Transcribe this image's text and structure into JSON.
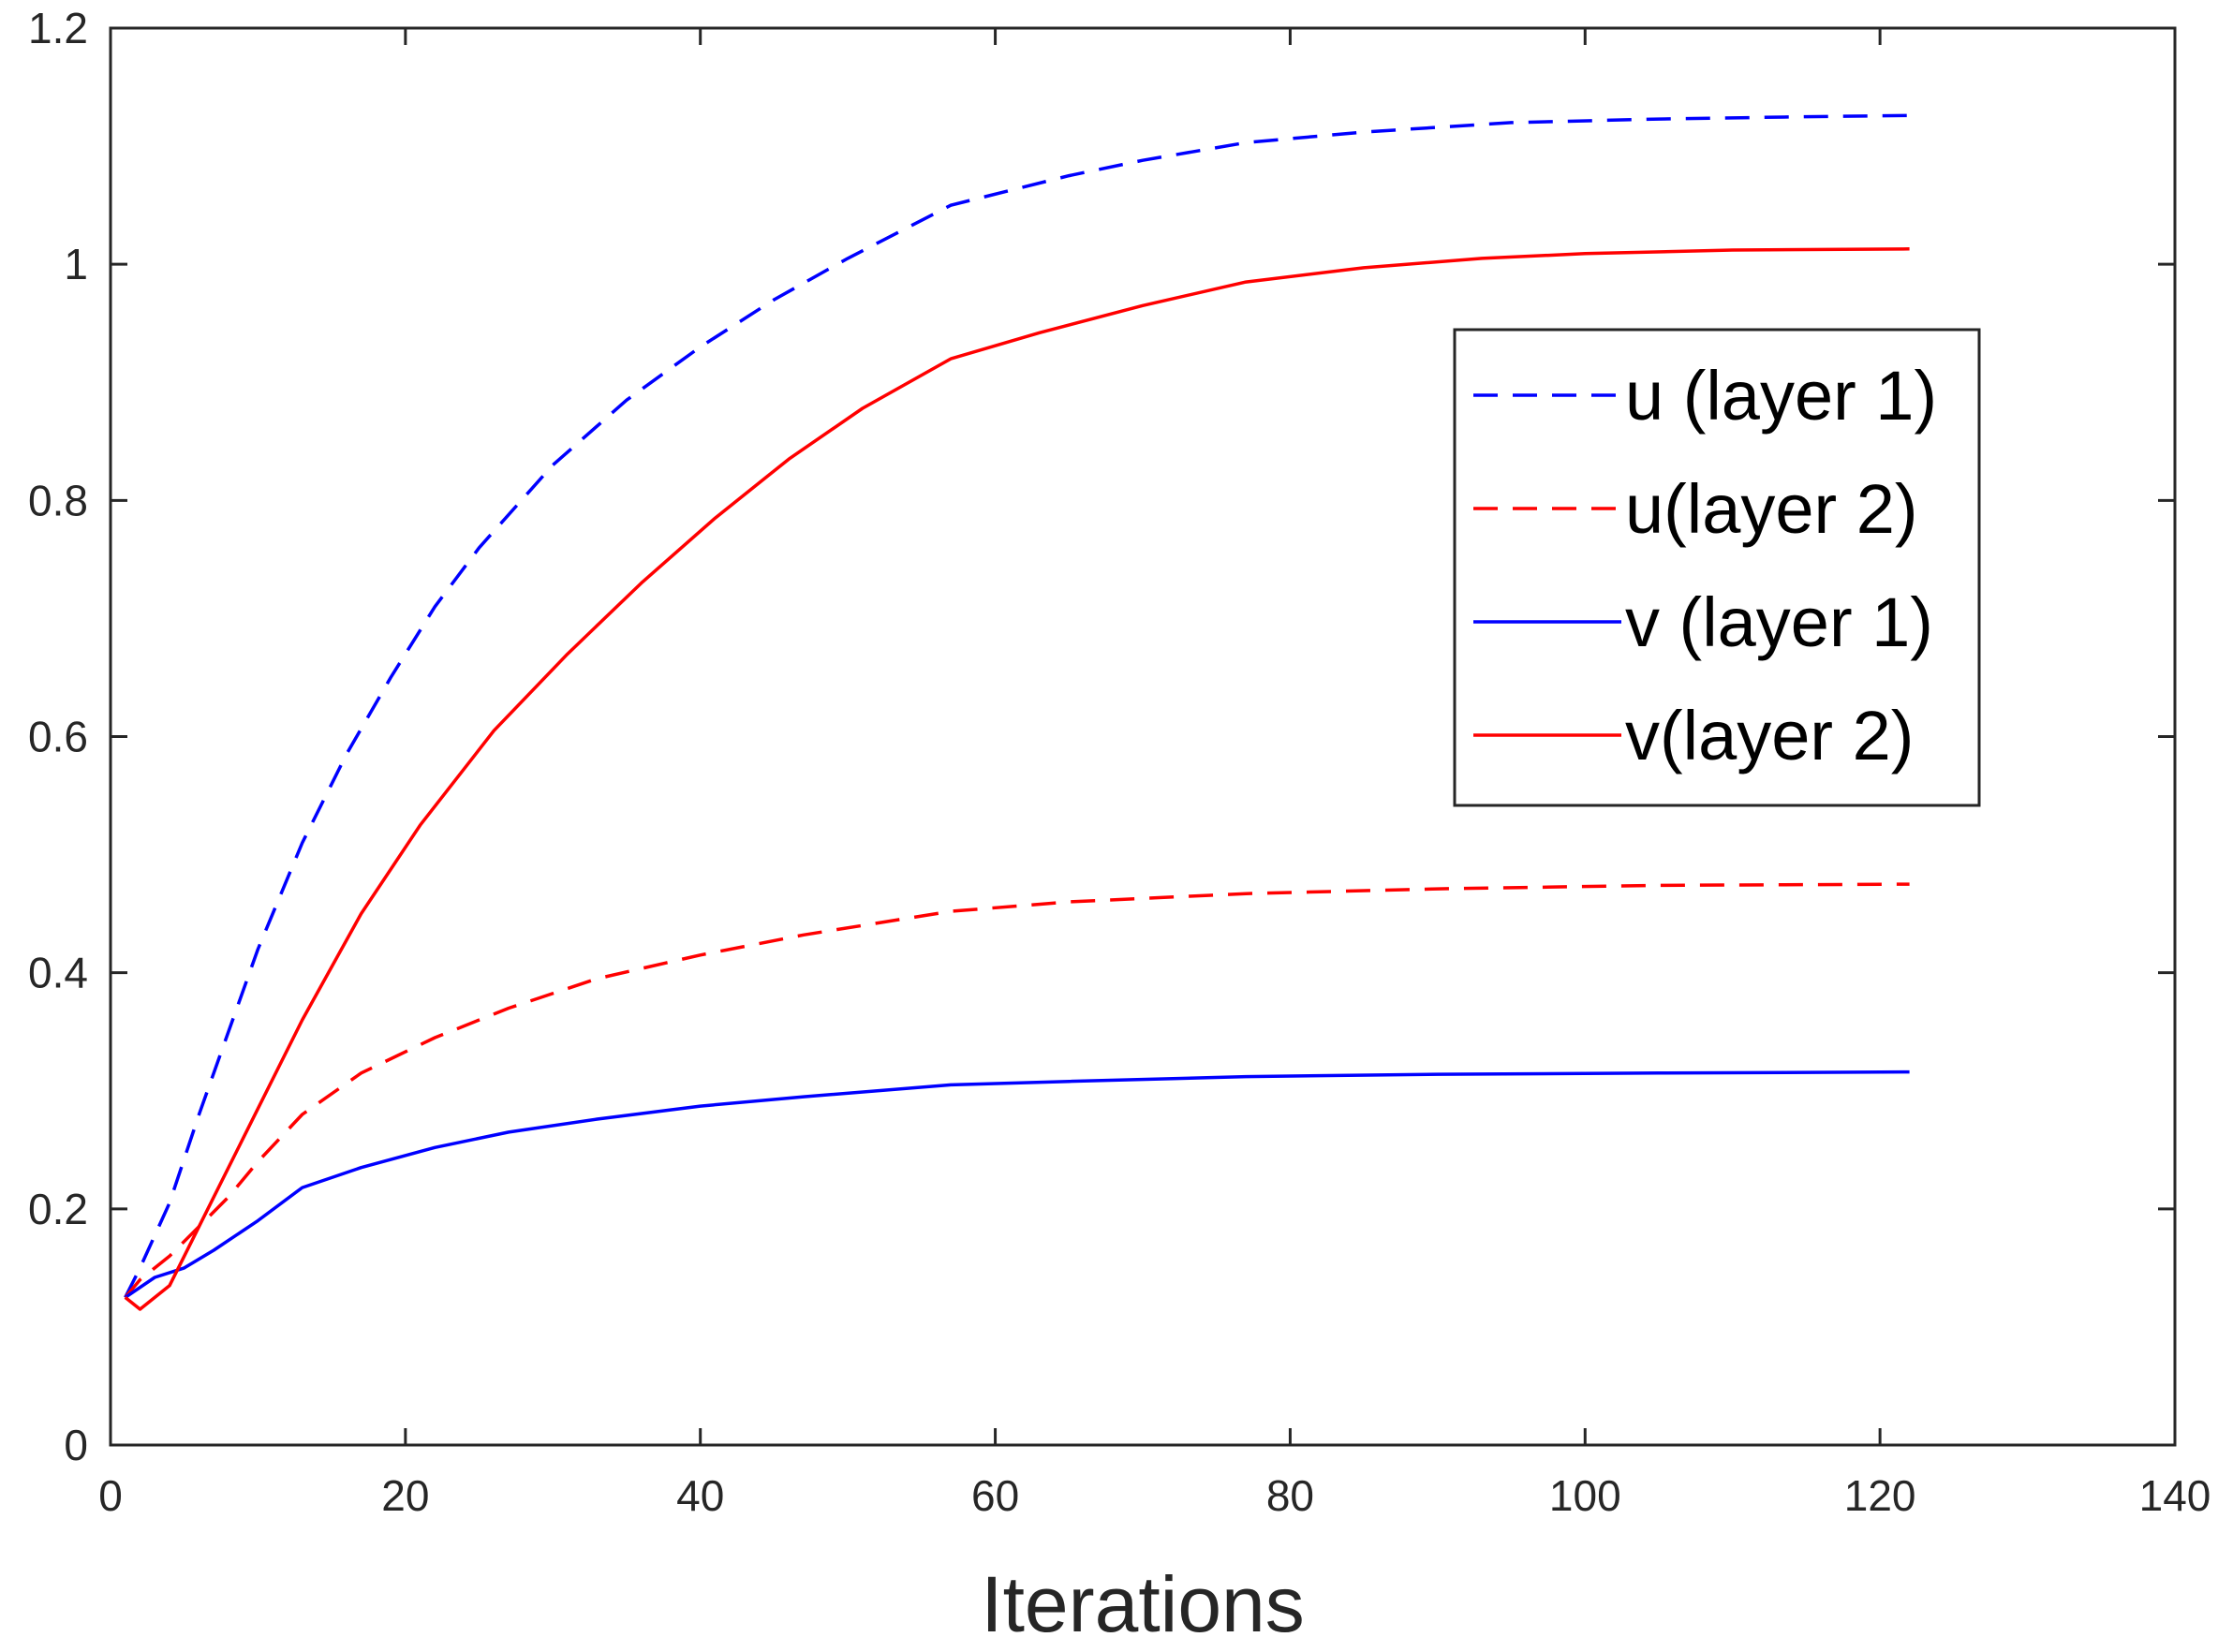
{
  "chart_data": {
    "type": "line",
    "title": "",
    "xlabel": "Iterations",
    "ylabel": "",
    "xlim": [
      0,
      140
    ],
    "ylim": [
      0,
      1.2
    ],
    "xticks": [
      0,
      20,
      40,
      60,
      80,
      100,
      120,
      140
    ],
    "yticks": [
      0,
      0.2,
      0.4,
      0.6,
      0.8,
      1,
      1.2
    ],
    "xtick_labels": [
      "0",
      "20",
      "40",
      "60",
      "80",
      "100",
      "120",
      "140"
    ],
    "ytick_labels": [
      "0",
      "0.2",
      "0.4",
      "0.6",
      "0.8",
      "1",
      "1.2"
    ],
    "grid": false,
    "box": true,
    "legend_position": "right",
    "series": [
      {
        "name": "u (layer 1)",
        "color": "#0000ff",
        "dash": "dashed",
        "x": [
          1,
          2,
          4,
          6,
          8,
          10,
          13,
          16,
          19,
          22,
          25,
          30,
          35,
          40,
          45,
          50,
          57,
          65,
          70,
          77,
          85,
          95,
          105,
          115,
          122
        ],
        "y": [
          0.125,
          0.15,
          0.205,
          0.28,
          0.35,
          0.42,
          0.51,
          0.585,
          0.65,
          0.71,
          0.76,
          0.83,
          0.885,
          0.93,
          0.97,
          1.005,
          1.05,
          1.075,
          1.088,
          1.103,
          1.112,
          1.12,
          1.123,
          1.125,
          1.126
        ]
      },
      {
        "name": "u(layer 2)",
        "color": "#ff0000",
        "dash": "dashed",
        "x": [
          1,
          2,
          4,
          6,
          8,
          10,
          13,
          17,
          22,
          27,
          33,
          40,
          47,
          57,
          65,
          77,
          90,
          105,
          122
        ],
        "y": [
          0.125,
          0.14,
          0.16,
          0.185,
          0.21,
          0.24,
          0.28,
          0.315,
          0.345,
          0.37,
          0.395,
          0.415,
          0.432,
          0.452,
          0.46,
          0.467,
          0.471,
          0.474,
          0.475
        ]
      },
      {
        "name": "v (layer 1)",
        "color": "#0000ff",
        "dash": "solid",
        "x": [
          1,
          3,
          5,
          7,
          10,
          13,
          17,
          22,
          27,
          33,
          40,
          47,
          57,
          65,
          77,
          90,
          105,
          122
        ],
        "y": [
          0.125,
          0.142,
          0.15,
          0.165,
          0.19,
          0.218,
          0.235,
          0.252,
          0.265,
          0.276,
          0.287,
          0.295,
          0.305,
          0.308,
          0.312,
          0.314,
          0.315,
          0.316
        ]
      },
      {
        "name": "v(layer 2)",
        "color": "#ff0000",
        "dash": "solid",
        "x": [
          1,
          2,
          4,
          6,
          9,
          13,
          17,
          21,
          26,
          31,
          36,
          41,
          46,
          51,
          57,
          63,
          70,
          77,
          85,
          93,
          100,
          110,
          122
        ],
        "y": [
          0.125,
          0.115,
          0.135,
          0.185,
          0.26,
          0.36,
          0.45,
          0.525,
          0.605,
          0.67,
          0.73,
          0.785,
          0.835,
          0.878,
          0.92,
          0.942,
          0.965,
          0.985,
          0.997,
          1.005,
          1.009,
          1.012,
          1.013
        ]
      }
    ]
  }
}
